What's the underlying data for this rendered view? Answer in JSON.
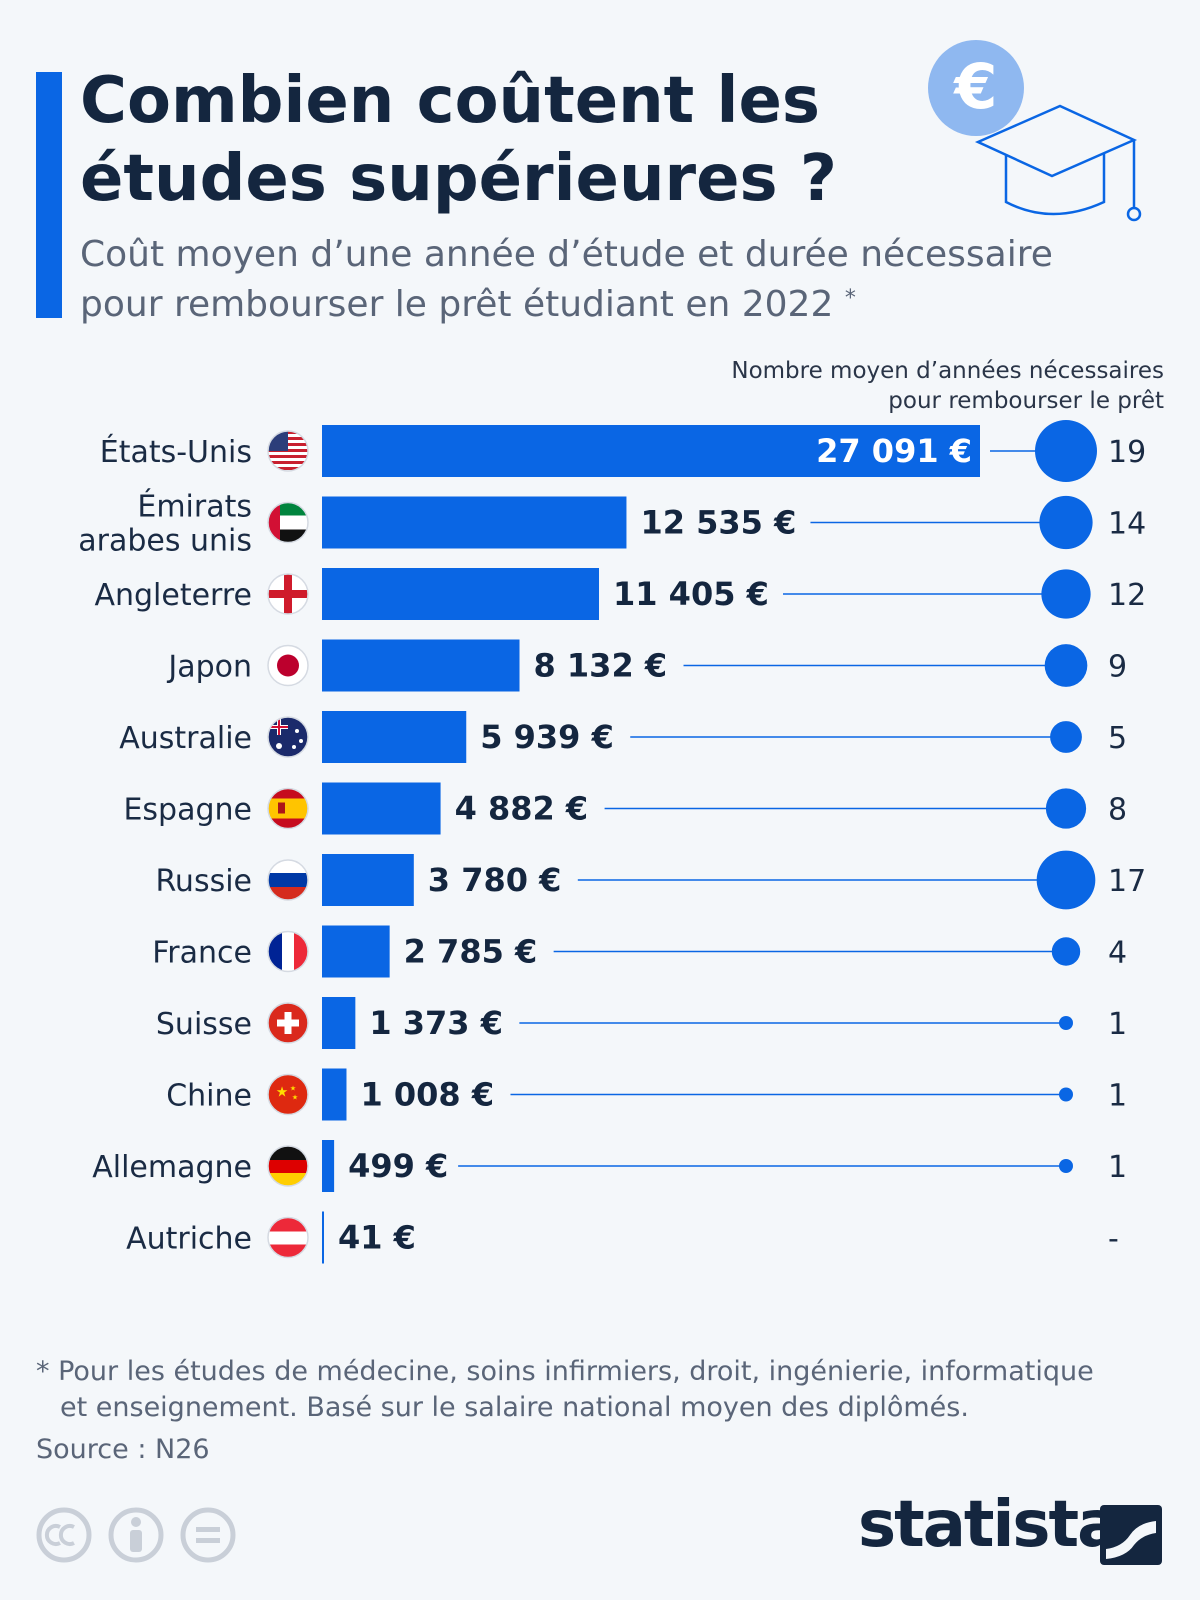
{
  "header": {
    "title_line1": "Combien coûtent les",
    "title_line2": "études supérieures ?",
    "subtitle_line1": "Coût moyen d’une année d’étude et durée nécessaire",
    "subtitle_line2": "pour rembourser le prêt étudiant en 2022",
    "subtitle_marker": "*",
    "icon_symbol": "€"
  },
  "colors": {
    "accent": "#0a66e4",
    "text": "#14263f",
    "muted": "#5a6578"
  },
  "chart_data": {
    "type": "bar",
    "orientation": "horizontal",
    "value_unit_suffix": " €",
    "right_axis_label": "Nombre moyen d’années nécessaires pour rembourser le prêt",
    "right_axis_label_line1": "Nombre moyen d’années nécessaires",
    "right_axis_label_line2": "pour rembourser le prêt",
    "categories": [
      [
        "États-Unis"
      ],
      [
        "Émirats",
        "arabes unis"
      ],
      [
        "Angleterre"
      ],
      [
        "Japon"
      ],
      [
        "Australie"
      ],
      [
        "Espagne"
      ],
      [
        "Russie"
      ],
      [
        "France"
      ],
      [
        "Suisse"
      ],
      [
        "Chine"
      ],
      [
        "Allemagne"
      ],
      [
        "Autriche"
      ]
    ],
    "flags": [
      "us-flag-icon",
      "uae-flag-icon",
      "england-flag-icon",
      "japan-flag-icon",
      "australia-flag-icon",
      "spain-flag-icon",
      "russia-flag-icon",
      "france-flag-icon",
      "switzerland-flag-icon",
      "china-flag-icon",
      "germany-flag-icon",
      "austria-flag-icon"
    ],
    "values": [
      27091,
      12535,
      11405,
      8132,
      5939,
      4882,
      3780,
      2785,
      1373,
      1008,
      499,
      41
    ],
    "value_labels": [
      "27 091 €",
      "12 535 €",
      "11 405 €",
      "8 132 €",
      "5 939 €",
      "4 882 €",
      "3 780 €",
      "2 785 €",
      "1 373 €",
      "1 008 €",
      "499 €",
      "41 €"
    ],
    "years": [
      19,
      14,
      12,
      9,
      5,
      8,
      17,
      4,
      1,
      1,
      1,
      null
    ],
    "years_labels": [
      "19",
      "14",
      "12",
      "9",
      "5",
      "8",
      "17",
      "4",
      "1",
      "1",
      "1",
      "-"
    ],
    "xlim": [
      0,
      27091
    ]
  },
  "footer": {
    "footnote_line1": "* Pour les études de médecine, soins infirmiers, droit, ingénierie, informatique",
    "footnote_line2": "et enseignement. Basé sur le salaire national moyen des diplômés.",
    "source": "Source : N26",
    "brand": "statista",
    "license_icons": [
      "cc-icon",
      "attribution-icon",
      "no-derivatives-icon"
    ]
  }
}
